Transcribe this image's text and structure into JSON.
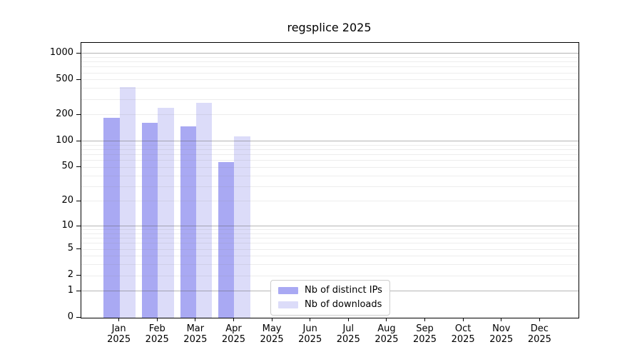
{
  "chart_data": {
    "type": "bar",
    "title": "regsplice 2025",
    "categories": [
      "Jan",
      "Feb",
      "Mar",
      "Apr",
      "May",
      "Jun",
      "Jul",
      "Aug",
      "Sep",
      "Oct",
      "Nov",
      "Dec"
    ],
    "x_tick_line2": "2025",
    "series": [
      {
        "name": "Nb of distinct IPs",
        "color": "#a9a9f3",
        "values": [
          185,
          163,
          148,
          57,
          0,
          0,
          0,
          0,
          0,
          0,
          0,
          0
        ]
      },
      {
        "name": "Nb of downloads",
        "color": "#dcdcf9",
        "values": [
          415,
          240,
          275,
          114,
          0,
          0,
          0,
          0,
          0,
          0,
          0,
          0
        ]
      }
    ],
    "xlabel": "",
    "ylabel": "",
    "y_scale": "log10(value+1)",
    "ylim": [
      0,
      1320
    ],
    "y_ticks": [
      0,
      1,
      2,
      5,
      10,
      20,
      50,
      100,
      200,
      500,
      1000
    ],
    "y_minor_gridlines": [
      2,
      3,
      4,
      5,
      6,
      7,
      8,
      9,
      20,
      30,
      40,
      50,
      60,
      70,
      80,
      90,
      200,
      300,
      400,
      500,
      600,
      700,
      800,
      900
    ],
    "y_major_gridlines": [
      1,
      10,
      100,
      1000
    ],
    "grid": true,
    "legend_position": "lower center",
    "colors": {
      "axis": "#000000",
      "major_grid": "#b4b4b4",
      "minor_grid": "#e9e9e9",
      "background": "#ffffff"
    }
  }
}
